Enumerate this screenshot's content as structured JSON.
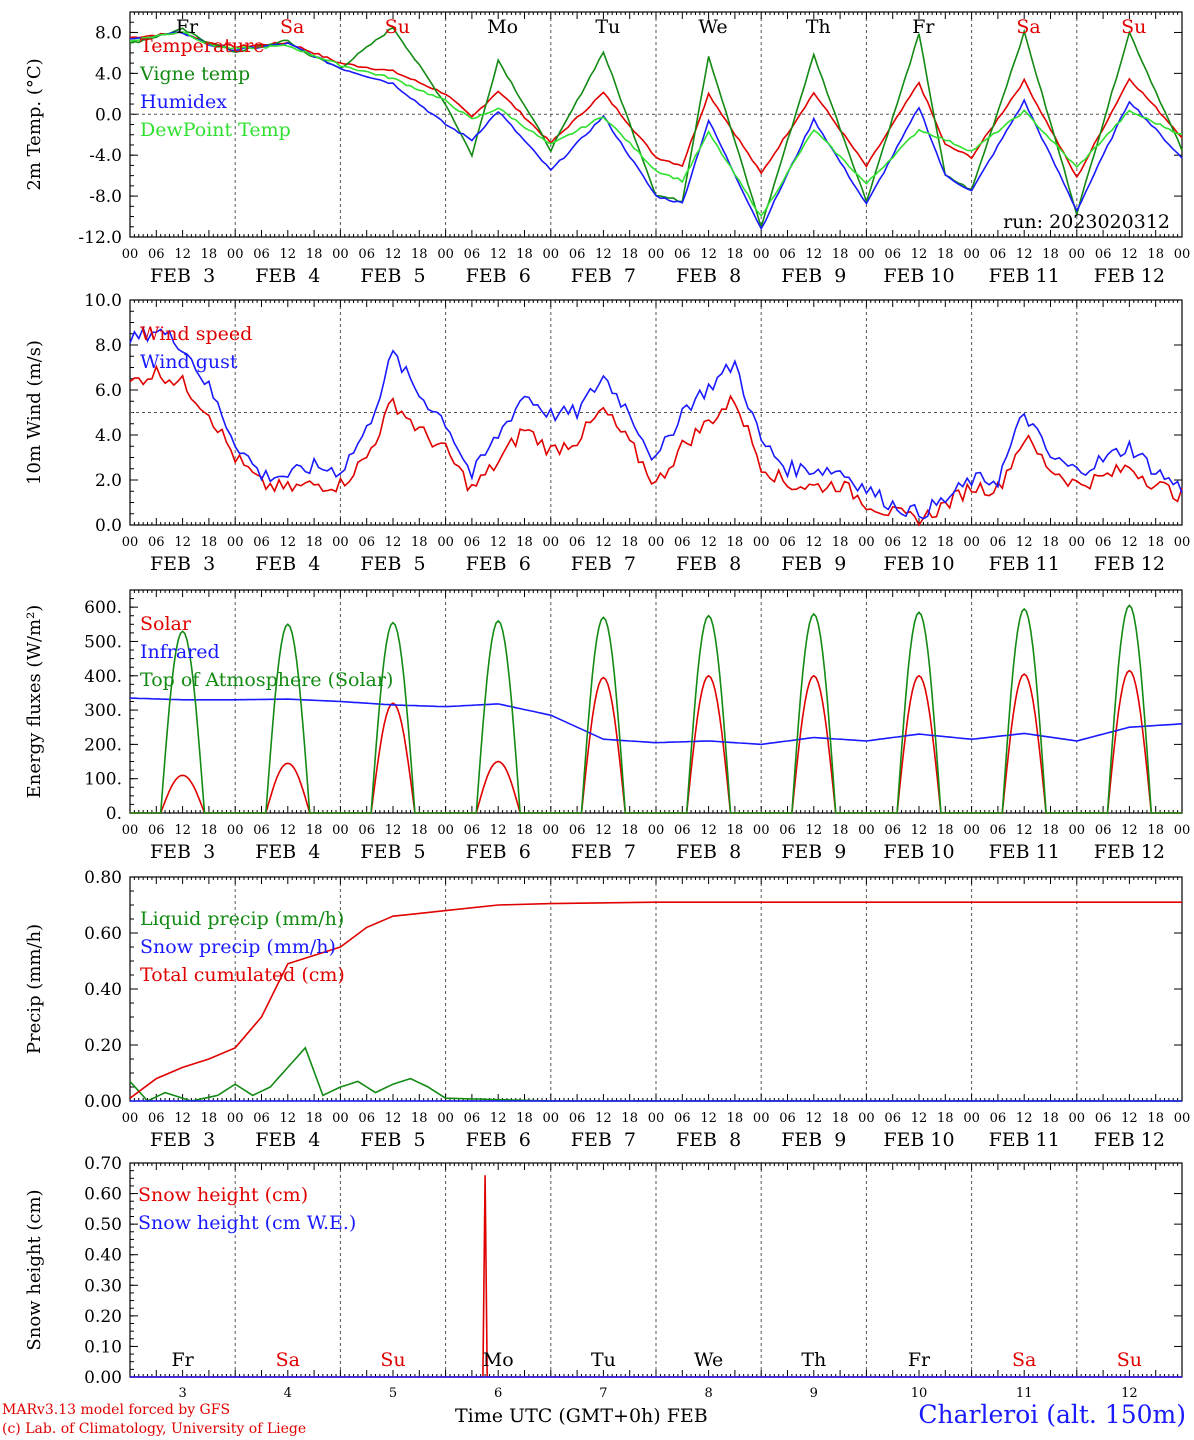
{
  "colors": {
    "red": "#e00000",
    "green": "#138a13",
    "blue": "#1a1aff",
    "lightgreen": "#30e030",
    "grid": "#555555"
  },
  "x_hour_labels": [
    "00",
    "06",
    "12",
    "18"
  ],
  "final_hour_label": "00",
  "date_labels": [
    "FEB  3",
    "FEB  4",
    "FEB  5",
    "FEB  6",
    "FEB  7",
    "FEB  8",
    "FEB  9",
    "FEB 10",
    "FEB 11",
    "FEB 12"
  ],
  "weekdays": [
    {
      "label": "Fr",
      "color": "#000000"
    },
    {
      "label": "Sa",
      "color": "#e00000"
    },
    {
      "label": "Su",
      "color": "#e00000"
    },
    {
      "label": "Mo",
      "color": "#000000"
    },
    {
      "label": "Tu",
      "color": "#000000"
    },
    {
      "label": "We",
      "color": "#000000"
    },
    {
      "label": "Th",
      "color": "#000000"
    },
    {
      "label": "Fr",
      "color": "#000000"
    },
    {
      "label": "Sa",
      "color": "#e00000"
    },
    {
      "label": "Su",
      "color": "#e00000"
    }
  ],
  "day_numbers": [
    "3",
    "4",
    "5",
    "6",
    "7",
    "8",
    "9",
    "10",
    "11",
    "12"
  ],
  "run_label": "run: 2023020312",
  "footer": {
    "model": "MARv3.13 model forced by GFS",
    "copyright": "(c) Lab. of Climatology, University of Liege",
    "time_axis": "Time UTC (GMT+0h) FEB",
    "station": "Charleroi (alt. 150m)"
  },
  "chart_data": [
    {
      "type": "line",
      "ylabel": "2m Temp. (°C)",
      "ylim": [
        -12,
        10
      ],
      "yticks": [
        "8.0",
        "4.0",
        "0.0",
        "-4.0",
        "-8.0",
        "-12.0"
      ],
      "ytick_values": [
        8,
        4,
        0,
        -4,
        -8,
        -12
      ],
      "reference_line": 0,
      "x_unit": "hours since FEB 3 00 UTC",
      "series": [
        {
          "name": "Temperature",
          "color": "#e00000",
          "x": [
            0,
            12,
            18,
            24,
            36,
            48,
            60,
            72,
            78,
            84,
            96,
            108,
            120,
            126,
            132,
            144,
            156,
            168,
            180,
            186,
            192,
            204,
            216,
            228,
            240
          ],
          "y": [
            7.5,
            8.0,
            7.0,
            6.6,
            7.0,
            5.0,
            4.2,
            2.0,
            -0.3,
            2.3,
            -2.8,
            2.1,
            -4.2,
            -5.0,
            2.0,
            -5.8,
            2.1,
            -5.1,
            3.1,
            -3.0,
            -4.2,
            3.3,
            -6.2,
            3.5,
            -2.2
          ]
        },
        {
          "name": "Vigne temp",
          "color": "#138a13",
          "x": [
            0,
            12,
            18,
            24,
            36,
            40,
            48,
            60,
            72,
            78,
            84,
            96,
            108,
            120,
            126,
            132,
            144,
            156,
            168,
            180,
            186,
            192,
            204,
            216,
            228,
            240
          ],
          "y": [
            6.9,
            8.3,
            7.0,
            6.1,
            7.2,
            6.0,
            4.5,
            8.5,
            1.0,
            -4.0,
            5.3,
            -3.5,
            6.1,
            -7.9,
            -8.5,
            5.7,
            -11.0,
            5.8,
            -8.5,
            7.8,
            -6.0,
            -7.4,
            8.0,
            -9.7,
            8.0,
            -3.5
          ]
        },
        {
          "name": "Humidex",
          "color": "#1a1aff",
          "x": [
            0,
            12,
            18,
            24,
            36,
            48,
            60,
            72,
            78,
            84,
            96,
            108,
            120,
            126,
            132,
            144,
            156,
            168,
            180,
            186,
            192,
            204,
            216,
            228,
            240
          ],
          "y": [
            7.3,
            8.0,
            6.8,
            6.3,
            6.9,
            4.5,
            3.0,
            -1.0,
            -2.5,
            0.3,
            -5.5,
            -0.2,
            -8.0,
            -8.7,
            -0.6,
            -11.2,
            -0.5,
            -8.8,
            0.7,
            -6.0,
            -7.5,
            1.3,
            -9.4,
            1.3,
            -4.3
          ]
        },
        {
          "name": "DewPoint Temp",
          "color": "#30e030",
          "x": [
            0,
            12,
            18,
            24,
            36,
            48,
            60,
            72,
            78,
            84,
            96,
            108,
            120,
            126,
            132,
            144,
            156,
            168,
            180,
            186,
            192,
            204,
            216,
            228,
            240
          ],
          "y": [
            7.2,
            8.1,
            6.8,
            6.4,
            6.7,
            4.8,
            3.5,
            1.3,
            -0.5,
            0.6,
            -3.0,
            -0.2,
            -5.5,
            -6.5,
            -1.8,
            -10.0,
            -1.5,
            -6.8,
            -1.5,
            -2.5,
            -3.6,
            0.3,
            -5.2,
            0.3,
            -2.0
          ]
        }
      ]
    },
    {
      "type": "line",
      "ylabel": "10m Wind (m/s)",
      "ylim": [
        0,
        10
      ],
      "yticks": [
        "10.0",
        "8.0",
        "6.0",
        "4.0",
        "2.0",
        "0.0"
      ],
      "ytick_values": [
        10,
        8,
        6,
        4,
        2,
        0
      ],
      "reference_line": 5,
      "x_unit": "hours since FEB 3 00 UTC",
      "series": [
        {
          "name": "Wind speed",
          "color": "#e00000",
          "x": [
            0,
            6,
            12,
            18,
            24,
            30,
            36,
            42,
            48,
            54,
            60,
            66,
            72,
            78,
            84,
            90,
            96,
            102,
            108,
            114,
            120,
            126,
            132,
            138,
            144,
            150,
            156,
            162,
            168,
            174,
            180,
            186,
            192,
            198,
            204,
            210,
            216,
            222,
            228,
            234,
            240
          ],
          "y": [
            6.3,
            6.8,
            6.3,
            5.0,
            3.0,
            1.8,
            1.6,
            1.8,
            1.8,
            3.0,
            5.5,
            4.2,
            3.3,
            1.6,
            2.8,
            4.3,
            3.3,
            3.8,
            5.1,
            3.6,
            1.8,
            3.5,
            4.6,
            5.6,
            2.7,
            1.8,
            1.7,
            1.8,
            1.0,
            0.5,
            0.2,
            0.9,
            1.7,
            1.6,
            3.9,
            2.5,
            1.8,
            2.1,
            2.6,
            1.8,
            1.3
          ]
        },
        {
          "name": "Wind gust",
          "color": "#1a1aff",
          "x": [
            0,
            6,
            12,
            18,
            24,
            30,
            36,
            42,
            48,
            54,
            60,
            66,
            72,
            78,
            84,
            90,
            96,
            102,
            108,
            114,
            120,
            126,
            132,
            138,
            144,
            150,
            156,
            162,
            168,
            174,
            180,
            186,
            192,
            198,
            204,
            210,
            216,
            222,
            228,
            234,
            240
          ],
          "y": [
            8.2,
            8.7,
            8.0,
            6.1,
            3.7,
            2.2,
            2.2,
            2.6,
            2.4,
            4.2,
            7.6,
            5.8,
            4.6,
            2.2,
            4.0,
            5.8,
            4.9,
            5.0,
            6.6,
            5.0,
            2.8,
            5.1,
            6.1,
            7.2,
            3.7,
            2.5,
            2.5,
            2.4,
            1.6,
            0.9,
            0.5,
            1.1,
            2.0,
            2.0,
            5.0,
            3.0,
            2.4,
            2.9,
            3.5,
            2.4,
            1.6
          ]
        }
      ]
    },
    {
      "type": "line",
      "ylabel": "Energy fluxes (W/m²)",
      "ylim": [
        0,
        650
      ],
      "yticks": [
        "600.",
        "500.",
        "400.",
        "300.",
        "200.",
        "100.",
        "0."
      ],
      "ytick_values": [
        600,
        500,
        400,
        300,
        200,
        100,
        0
      ],
      "x_unit": "hours since FEB 3 00 UTC",
      "series": [
        {
          "name": "Solar",
          "color": "#e00000",
          "peaks": [
            110,
            145,
            320,
            150,
            395,
            400,
            400,
            400,
            405,
            415
          ]
        },
        {
          "name": "Infrared",
          "color": "#1a1aff",
          "x": [
            0,
            12,
            24,
            36,
            48,
            60,
            72,
            84,
            96,
            108,
            120,
            132,
            144,
            156,
            168,
            180,
            192,
            204,
            216,
            228,
            240
          ],
          "y": [
            335,
            330,
            330,
            332,
            325,
            315,
            310,
            318,
            285,
            215,
            205,
            210,
            200,
            220,
            210,
            230,
            215,
            232,
            210,
            250,
            260
          ]
        },
        {
          "name": "Top of Atmosphere (Solar)",
          "color": "#138a13",
          "peaks": [
            530,
            550,
            555,
            560,
            570,
            575,
            580,
            585,
            595,
            605
          ]
        }
      ]
    },
    {
      "type": "line",
      "ylabel": "Precip (mm/h)",
      "ylim": [
        0,
        0.8
      ],
      "yticks": [
        "0.80",
        "0.60",
        "0.40",
        "0.20",
        "0.00"
      ],
      "ytick_values": [
        0.8,
        0.6,
        0.4,
        0.2,
        0
      ],
      "x_unit": "hours since FEB 3 00 UTC",
      "series": [
        {
          "name": "Liquid precip (mm/h)",
          "color": "#138a13",
          "x": [
            0,
            4,
            8,
            14,
            20,
            24,
            28,
            32,
            36,
            40,
            44,
            48,
            52,
            56,
            60,
            64,
            68,
            72,
            84,
            96,
            120,
            240
          ],
          "y": [
            0.07,
            0.0,
            0.03,
            0.0,
            0.02,
            0.06,
            0.02,
            0.05,
            0.12,
            0.19,
            0.02,
            0.05,
            0.07,
            0.03,
            0.06,
            0.08,
            0.05,
            0.01,
            0.005,
            0.0,
            0.0,
            0.0
          ]
        },
        {
          "name": "Snow precip (mm/h)",
          "color": "#1a1aff",
          "x": [
            0,
            240
          ],
          "y": [
            0,
            0
          ]
        },
        {
          "name": "Total cumulated (cm)",
          "color": "#e00000",
          "x": [
            0,
            6,
            12,
            18,
            24,
            30,
            36,
            42,
            48,
            54,
            60,
            66,
            72,
            84,
            96,
            120,
            240
          ],
          "y": [
            0.01,
            0.08,
            0.12,
            0.15,
            0.19,
            0.3,
            0.49,
            0.52,
            0.55,
            0.62,
            0.66,
            0.67,
            0.68,
            0.7,
            0.705,
            0.71,
            0.71
          ]
        }
      ]
    },
    {
      "type": "line",
      "ylabel": "Snow height (cm)",
      "ylim": [
        0,
        0.7
      ],
      "yticks": [
        "0.70",
        "0.60",
        "0.50",
        "0.40",
        "0.30",
        "0.20",
        "0.10",
        "0.00"
      ],
      "ytick_values": [
        0.7,
        0.6,
        0.5,
        0.4,
        0.3,
        0.2,
        0.1,
        0
      ],
      "x_unit": "hours since FEB 3 00 UTC",
      "series": [
        {
          "name": "Snow height (cm)",
          "color": "#e00000",
          "x": [
            0,
            80.5,
            81,
            81.5,
            240
          ],
          "y": [
            0,
            0,
            0.66,
            0,
            0
          ]
        },
        {
          "name": "Snow height (cm W.E.)",
          "color": "#1a1aff",
          "x": [
            0,
            240
          ],
          "y": [
            0,
            0
          ]
        }
      ]
    }
  ]
}
